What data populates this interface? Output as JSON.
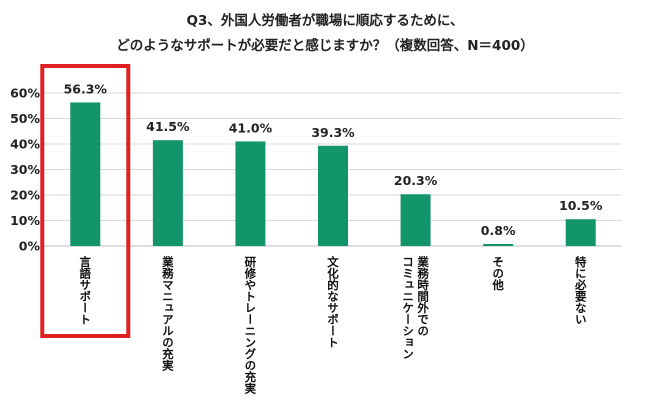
{
  "chart_data": {
    "type": "bar",
    "title_lines": [
      "Q3、外国人労働者が職場に順応するために、",
      "どのようなサポートが必要だと感じますか？（複数回答、N＝400）"
    ],
    "categories": [
      [
        "言語サポート"
      ],
      [
        "業務マニュアルの充実"
      ],
      [
        "研修やトレーニングの充実"
      ],
      [
        "文化的なサポート"
      ],
      [
        "業務時間外での",
        "コミュニケーション"
      ],
      [
        "その他"
      ],
      [
        "特に必要ない"
      ]
    ],
    "values": [
      56.3,
      41.5,
      41.0,
      39.3,
      20.3,
      0.8,
      10.5
    ],
    "data_labels": [
      "56.3%",
      "41.5%",
      "41.0%",
      "39.3%",
      "20.3%",
      "0.8%",
      "10.5%"
    ],
    "y_ticks": [
      "0%",
      "10%",
      "20%",
      "30%",
      "40%",
      "50%",
      "60%"
    ],
    "ylim": [
      0,
      60
    ],
    "grid": true,
    "bar_color": "#13956b",
    "highlight_index": 0,
    "highlight_color": "#e02020"
  }
}
